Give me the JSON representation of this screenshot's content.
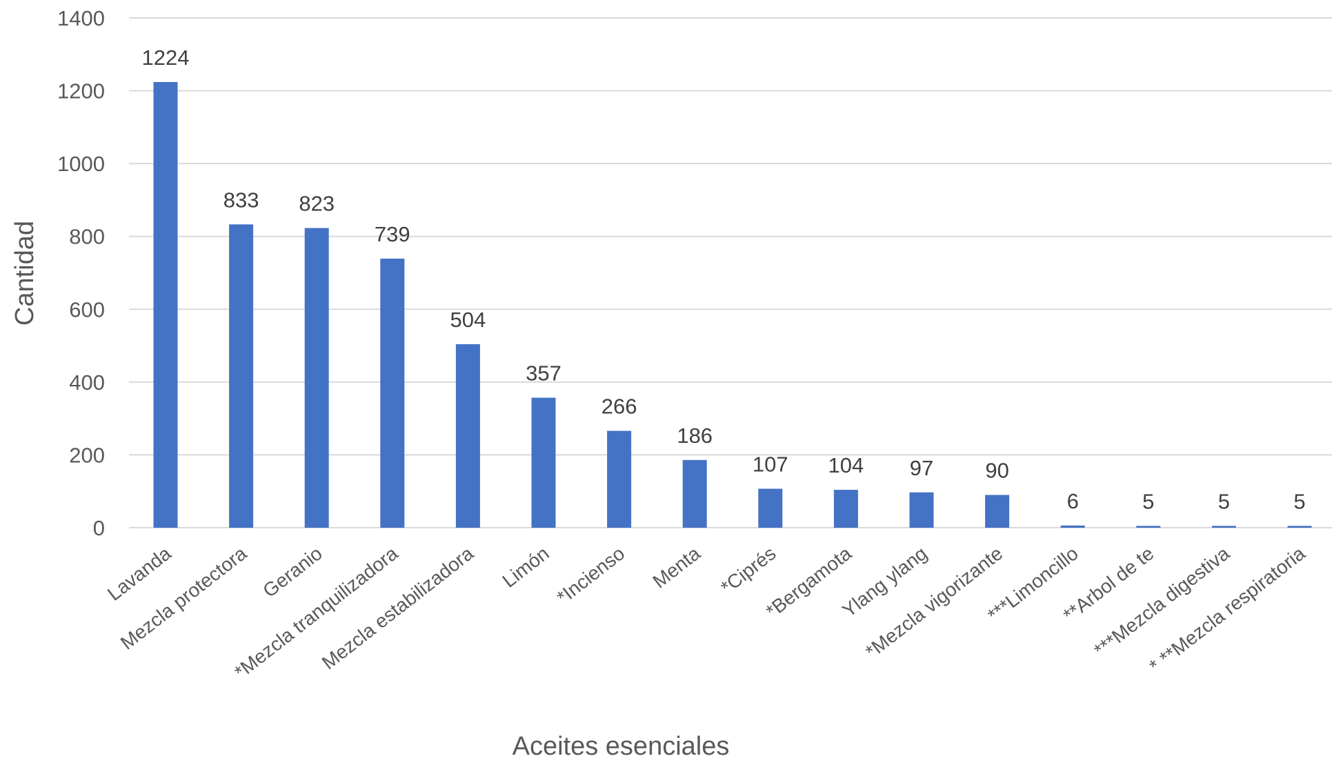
{
  "chart_data": {
    "type": "bar",
    "title": "",
    "xlabel": "Aceites esenciales",
    "ylabel": "Cantidad",
    "ylim": [
      0,
      1400
    ],
    "yticks": [
      0,
      200,
      400,
      600,
      800,
      1000,
      1200,
      1400
    ],
    "grid": true,
    "legend": "none",
    "bar_color": "#4472C4",
    "categories": [
      "Lavanda",
      "Mezcla protectora",
      "Geranio",
      "*Mezcla tranquilizadora",
      "Mezcla estabilizadora",
      "Limón",
      "*Incienso",
      "Menta",
      "*Ciprés",
      "*Bergamota",
      "Ylang ylang",
      "*Mezcla vigorizante",
      "***Limoncillo",
      "**Arbol de te",
      "***Mezcla digestiva",
      "* **Mezcla respiratoria"
    ],
    "values": [
      1224,
      833,
      823,
      739,
      504,
      357,
      266,
      186,
      107,
      104,
      97,
      90,
      6,
      5,
      5,
      5
    ]
  }
}
